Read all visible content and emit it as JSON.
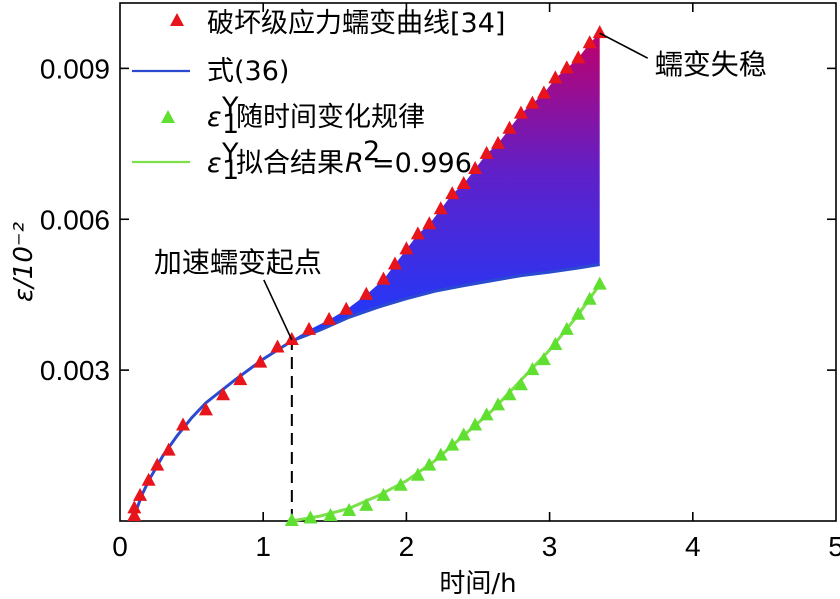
{
  "chart_data": {
    "type": "line",
    "xlabel": "时间/h",
    "ylabel": "ε/10⁻²",
    "xlim": [
      0,
      5
    ],
    "ylim": [
      0,
      0.0103
    ],
    "xticks": [
      "0",
      "1",
      "2",
      "3",
      "4",
      "5"
    ],
    "yticks": [
      "0.003",
      "0.006",
      "0.009"
    ],
    "xtick_values": [
      0,
      1,
      2,
      3,
      4,
      5
    ],
    "ytick_values": [
      0.003,
      0.006,
      0.009
    ],
    "grid": false,
    "legend_position": "top-left",
    "legend": [
      {
        "label": "破坏级应力蠕变曲线[34]",
        "marker": "triangle",
        "color": "#e8141c"
      },
      {
        "label": "式(36)",
        "marker": "line",
        "color": "#2a4bd0"
      },
      {
        "label": "εᵧ₁随时间变化规律",
        "label_main": "随时间变化规律",
        "marker": "triangle",
        "color": "#5fe030"
      },
      {
        "label": "εᵧ₁拟合结果R²=0.996",
        "label_main": "拟合结果",
        "label_r": "R",
        "label_sup": "2",
        "label_val": "=0.996",
        "marker": "line",
        "color": "#7be04a"
      }
    ],
    "series": [
      {
        "name": "破坏级应力蠕变曲线[34]",
        "style": "marker",
        "color": "#e8141c",
        "x": [
          0.1,
          0.1,
          0.14,
          0.2,
          0.26,
          0.34,
          0.44,
          0.6,
          0.72,
          0.84,
          0.98,
          1.1,
          1.2,
          1.32,
          1.46,
          1.58,
          1.72,
          1.84,
          1.92,
          2.0,
          2.08,
          2.16,
          2.24,
          2.32,
          2.4,
          2.48,
          2.56,
          2.64,
          2.72,
          2.8,
          2.88,
          2.96,
          3.04,
          3.12,
          3.2,
          3.28,
          3.35
        ],
        "y": [
          0.0001,
          0.00025,
          0.0005,
          0.0008,
          0.0011,
          0.0014,
          0.0019,
          0.0022,
          0.0025,
          0.0028,
          0.00315,
          0.00345,
          0.0036,
          0.0038,
          0.004,
          0.0042,
          0.0045,
          0.0048,
          0.0051,
          0.0054,
          0.0057,
          0.0059,
          0.0062,
          0.0065,
          0.0067,
          0.007,
          0.0073,
          0.0075,
          0.0078,
          0.0081,
          0.0083,
          0.0085,
          0.0088,
          0.009,
          0.0092,
          0.0095,
          0.0097
        ]
      },
      {
        "name": "式(36)",
        "style": "line",
        "color": "#2a4bd0",
        "x": [
          0.1,
          0.15,
          0.2,
          0.3,
          0.4,
          0.5,
          0.6,
          0.8,
          1.0,
          1.2,
          1.4,
          1.6,
          1.8,
          2.0,
          2.2,
          2.4,
          2.6,
          2.8,
          3.0,
          3.2,
          3.35
        ],
        "y": [
          0.0001,
          0.0005,
          0.0008,
          0.0013,
          0.0017,
          0.00205,
          0.00235,
          0.0028,
          0.00322,
          0.00358,
          0.0038,
          0.00405,
          0.00425,
          0.00442,
          0.00457,
          0.00468,
          0.00478,
          0.00488,
          0.00495,
          0.00503,
          0.0051
        ]
      },
      {
        "name": "εᵧ₁随时间变化规律",
        "style": "marker",
        "color": "#5fe030",
        "x": [
          1.2,
          1.33,
          1.47,
          1.6,
          1.72,
          1.84,
          1.96,
          2.08,
          2.16,
          2.24,
          2.32,
          2.4,
          2.48,
          2.56,
          2.64,
          2.72,
          2.8,
          2.88,
          2.96,
          3.04,
          3.12,
          3.2,
          3.28,
          3.35
        ],
        "y": [
          0.0,
          5e-05,
          0.0001,
          0.0002,
          0.0003,
          0.0005,
          0.0007,
          0.0009,
          0.0011,
          0.0013,
          0.0015,
          0.0017,
          0.0019,
          0.0021,
          0.0023,
          0.0025,
          0.0027,
          0.003,
          0.0032,
          0.0035,
          0.0038,
          0.0041,
          0.0044,
          0.0047
        ]
      },
      {
        "name": "εᵧ₁拟合结果R²=0.996",
        "style": "line",
        "color": "#7be04a",
        "x": [
          1.2,
          1.4,
          1.6,
          1.8,
          2.0,
          2.2,
          2.4,
          2.6,
          2.8,
          3.0,
          3.2,
          3.35
        ],
        "y": [
          0.0,
          0.0001,
          0.00025,
          0.0005,
          0.0008,
          0.0012,
          0.0017,
          0.0022,
          0.0028,
          0.0034,
          0.0041,
          0.0047
        ]
      }
    ],
    "annotations": [
      {
        "text": "蠕变失稳",
        "x": 3.35,
        "y": 0.0097
      },
      {
        "text": "加速蠕变起点",
        "x": 1.2,
        "y": 0.0036
      }
    ],
    "shaded_region": {
      "x_from": 1.2,
      "x_to": 3.35,
      "gradient_colors": [
        "#1a2aff",
        "#b0006a"
      ]
    },
    "divider": {
      "x": 1.2,
      "from_y": 0.0,
      "to_y": 0.0036,
      "style": "dashed"
    }
  }
}
